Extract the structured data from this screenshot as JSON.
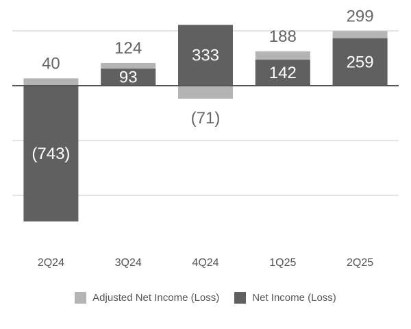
{
  "chart_data": {
    "type": "bar",
    "categories": [
      "2Q24",
      "3Q24",
      "4Q24",
      "1Q25",
      "2Q25"
    ],
    "series": [
      {
        "name": "Adjusted Net Income (Loss)",
        "values": [
          40,
          124,
          -71,
          188,
          299
        ],
        "labels": [
          "40",
          "124",
          "(71)",
          "188",
          "299"
        ],
        "color": "#b4b4b4"
      },
      {
        "name": "Net Income (Loss)",
        "values": [
          -743,
          93,
          333,
          142,
          259
        ],
        "labels": [
          "(743)",
          "93",
          "333",
          "142",
          "259"
        ],
        "color": "#606060"
      }
    ],
    "ylim": [
      -900,
      300
    ],
    "gridlines": [
      300,
      0,
      -300,
      -600
    ],
    "grid": true,
    "legend_position": "bottom"
  }
}
